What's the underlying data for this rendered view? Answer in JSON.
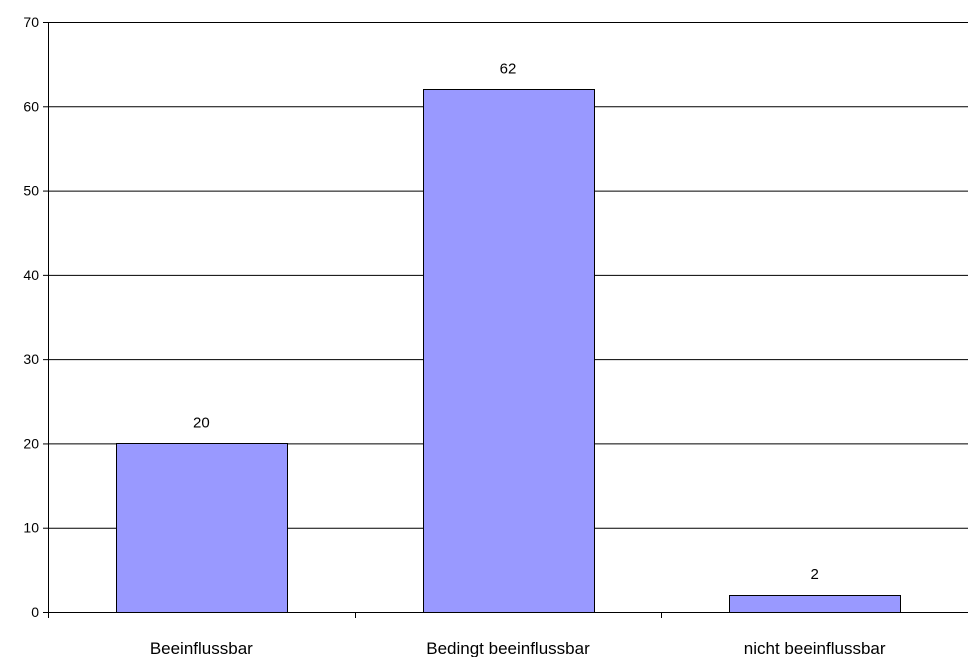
{
  "chart_data": {
    "type": "bar",
    "categories": [
      "Beeinflussbar",
      "Bedingt beeinflussbar",
      "nicht beeinflussbar"
    ],
    "values": [
      20,
      62,
      2
    ],
    "data_labels": [
      "20",
      "62",
      "2"
    ],
    "ylim": [
      0,
      70
    ],
    "y_ticks": [
      0,
      10,
      20,
      30,
      40,
      50,
      60,
      70
    ],
    "y_tick_labels": [
      "0",
      "10",
      "20",
      "30",
      "40",
      "50",
      "60",
      "70"
    ],
    "grid": true,
    "legend": "none",
    "colors": {
      "bar_fill": "#9999ff",
      "bar_stroke": "#000000",
      "grid": "#000000",
      "axis": "#000000",
      "text": "#000000",
      "background": "#ffffff"
    }
  }
}
